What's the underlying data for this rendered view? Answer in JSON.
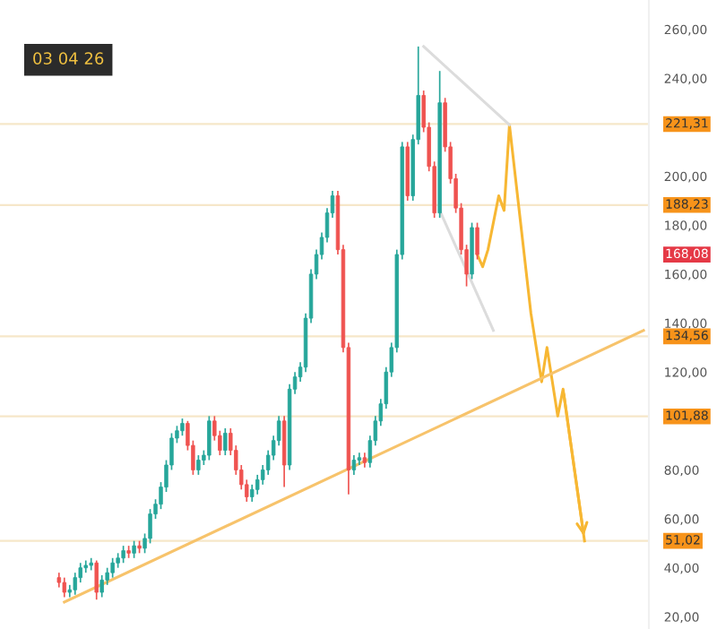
{
  "chart_data": {
    "type": "candlestick",
    "categories": [
      null,
      null,
      null,
      null,
      null,
      null,
      null,
      null,
      null,
      null,
      null,
      null,
      null,
      null,
      null,
      null,
      null,
      null,
      null,
      null,
      null,
      null,
      null,
      null,
      null,
      null,
      null,
      null,
      null,
      null,
      null,
      null,
      null,
      null,
      null,
      null,
      null,
      null,
      null,
      null,
      null,
      null,
      null,
      null,
      null,
      null,
      null,
      null,
      null,
      null,
      null,
      null,
      null,
      null,
      null,
      null,
      null,
      null,
      null,
      null,
      null,
      null,
      null,
      null,
      null,
      null,
      null,
      null,
      null,
      null,
      null,
      null,
      null,
      null,
      null,
      null,
      null,
      null,
      null,
      null,
      null,
      null,
      null,
      null,
      null,
      null,
      null,
      null,
      null,
      null,
      null,
      null,
      null,
      null,
      null,
      null,
      null,
      null,
      null,
      null,
      null,
      null,
      null,
      null,
      null,
      null,
      null,
      null,
      null,
      null
    ],
    "ohlc": [
      [
        36,
        38,
        32,
        34
      ],
      [
        34,
        36,
        28,
        30
      ],
      [
        30,
        33,
        28,
        31
      ],
      [
        31,
        38,
        29,
        36
      ],
      [
        36,
        42,
        34,
        40
      ],
      [
        40,
        43,
        38,
        41
      ],
      [
        41,
        44,
        39,
        42
      ],
      [
        42,
        43,
        27,
        30
      ],
      [
        30,
        37,
        28,
        35
      ],
      [
        35,
        40,
        33,
        38
      ],
      [
        38,
        44,
        36,
        42
      ],
      [
        42,
        46,
        40,
        44
      ],
      [
        44,
        49,
        42,
        47
      ],
      [
        47,
        49,
        44,
        46
      ],
      [
        46,
        51,
        44,
        49
      ],
      [
        49,
        51,
        46,
        48
      ],
      [
        48,
        54,
        46,
        52
      ],
      [
        52,
        64,
        50,
        62
      ],
      [
        62,
        68,
        60,
        66
      ],
      [
        66,
        75,
        64,
        73
      ],
      [
        73,
        84,
        71,
        82
      ],
      [
        82,
        95,
        80,
        93
      ],
      [
        93,
        98,
        91,
        96
      ],
      [
        96,
        101,
        94,
        99
      ],
      [
        99,
        100,
        88,
        90
      ],
      [
        90,
        92,
        78,
        80
      ],
      [
        80,
        86,
        78,
        84
      ],
      [
        84,
        88,
        82,
        86
      ],
      [
        86,
        102,
        84,
        100
      ],
      [
        100,
        102,
        92,
        94
      ],
      [
        94,
        96,
        86,
        88
      ],
      [
        88,
        97,
        86,
        95
      ],
      [
        95,
        97,
        86,
        88
      ],
      [
        88,
        90,
        78,
        80
      ],
      [
        80,
        82,
        72,
        74
      ],
      [
        74,
        76,
        67,
        69
      ],
      [
        69,
        74,
        67,
        72
      ],
      [
        72,
        78,
        70,
        76
      ],
      [
        76,
        82,
        74,
        80
      ],
      [
        80,
        88,
        78,
        86
      ],
      [
        86,
        94,
        84,
        92
      ],
      [
        92,
        102,
        90,
        100
      ],
      [
        100,
        102,
        73,
        82
      ],
      [
        82,
        115,
        80,
        113
      ],
      [
        113,
        120,
        111,
        118
      ],
      [
        118,
        124,
        116,
        122
      ],
      [
        122,
        144,
        120,
        142
      ],
      [
        142,
        162,
        140,
        160
      ],
      [
        160,
        170,
        158,
        168
      ],
      [
        168,
        177,
        166,
        175
      ],
      [
        175,
        187,
        173,
        185
      ],
      [
        185,
        194,
        183,
        192
      ],
      [
        192,
        194,
        168,
        170
      ],
      [
        170,
        172,
        128,
        130
      ],
      [
        130,
        132,
        70,
        80
      ],
      [
        80,
        86,
        78,
        84
      ],
      [
        84,
        87,
        82,
        85
      ],
      [
        85,
        87,
        81,
        83
      ],
      [
        83,
        94,
        81,
        92
      ],
      [
        92,
        102,
        90,
        100
      ],
      [
        100,
        109,
        98,
        107
      ],
      [
        107,
        122,
        105,
        120
      ],
      [
        120,
        132,
        118,
        130
      ],
      [
        130,
        170,
        128,
        168
      ],
      [
        168,
        214,
        166,
        212
      ],
      [
        212,
        214,
        190,
        192
      ],
      [
        192,
        217,
        190,
        215
      ],
      [
        215,
        253,
        213,
        233
      ],
      [
        233,
        235,
        218,
        220
      ],
      [
        220,
        222,
        202,
        204
      ],
      [
        204,
        206,
        183,
        185
      ],
      [
        185,
        243,
        183,
        230
      ],
      [
        230,
        232,
        210,
        212
      ],
      [
        212,
        214,
        197,
        199
      ],
      [
        199,
        201,
        185,
        187
      ],
      [
        187,
        189,
        168,
        170
      ],
      [
        170,
        172,
        155,
        160
      ],
      [
        160,
        181,
        158,
        179
      ],
      [
        179,
        181,
        166,
        168
      ],
      null,
      null,
      null,
      null,
      null,
      null,
      null,
      null,
      null,
      null,
      null,
      null,
      null,
      null,
      null,
      null,
      null,
      null,
      null,
      null,
      null,
      null,
      null,
      null,
      null,
      null,
      null,
      null,
      null,
      null,
      null
    ],
    "series": [
      {
        "type": "line",
        "color": "#f7b733",
        "values": [
          null,
          null,
          null,
          null,
          null,
          null,
          null,
          null,
          null,
          null,
          null,
          null,
          null,
          null,
          null,
          null,
          null,
          null,
          null,
          null,
          null,
          null,
          null,
          null,
          null,
          null,
          null,
          null,
          null,
          null,
          null,
          null,
          null,
          null,
          null,
          null,
          null,
          null,
          null,
          null,
          null,
          null,
          null,
          null,
          null,
          null,
          null,
          null,
          null,
          null,
          null,
          null,
          null,
          null,
          null,
          null,
          null,
          null,
          null,
          null,
          null,
          null,
          null,
          null,
          null,
          null,
          null,
          null,
          null,
          null,
          null,
          null,
          null,
          null,
          null,
          null,
          null,
          null,
          168,
          163,
          170,
          null,
          192,
          186,
          221,
          null,
          null,
          null,
          144,
          null,
          116,
          130,
          null,
          102,
          113,
          null,
          null,
          null,
          51,
          null,
          null,
          null,
          null,
          null,
          null,
          null,
          null,
          null,
          null,
          null
        ]
      },
      {
        "type": "line",
        "color": "#f7c36b",
        "values": [
          null,
          26,
          null,
          null,
          null,
          null,
          null,
          null,
          null,
          null,
          null,
          null,
          null,
          null,
          null,
          null,
          null,
          null,
          null,
          null,
          null,
          null,
          null,
          null,
          null,
          null,
          null,
          null,
          null,
          null,
          null,
          null,
          null,
          null,
          null,
          null,
          null,
          null,
          null,
          null,
          null,
          null,
          null,
          null,
          null,
          null,
          null,
          null,
          null,
          null,
          null,
          null,
          null,
          null,
          null,
          null,
          null,
          null,
          null,
          null,
          null,
          null,
          null,
          null,
          null,
          null,
          null,
          null,
          null,
          null,
          null,
          null,
          null,
          null,
          null,
          null,
          null,
          null,
          null,
          null,
          null,
          null,
          null,
          null,
          null,
          null,
          null,
          null,
          null,
          null,
          null,
          null,
          null,
          null,
          null,
          null,
          null,
          null,
          null,
          null,
          null,
          null,
          null,
          null,
          null,
          null,
          null,
          null,
          null,
          137
        ]
      },
      {
        "type": "line",
        "color": "#dcdcdc",
        "values": [
          null,
          null,
          null,
          null,
          null,
          null,
          null,
          null,
          null,
          null,
          null,
          null,
          null,
          null,
          null,
          null,
          null,
          null,
          null,
          null,
          null,
          null,
          null,
          null,
          null,
          null,
          null,
          null,
          null,
          null,
          null,
          null,
          null,
          null,
          null,
          null,
          null,
          null,
          null,
          null,
          null,
          null,
          null,
          null,
          null,
          null,
          null,
          null,
          null,
          null,
          null,
          null,
          null,
          null,
          null,
          null,
          null,
          null,
          null,
          null,
          null,
          null,
          null,
          null,
          null,
          null,
          null,
          null,
          253,
          null,
          null,
          null,
          null,
          null,
          null,
          null,
          null,
          null,
          null,
          null,
          null,
          null,
          null,
          null,
          221,
          null,
          null,
          null,
          null,
          null,
          null,
          null,
          null,
          null,
          null,
          null,
          null,
          null,
          null,
          null,
          null,
          null,
          null,
          null,
          null,
          null,
          null,
          null,
          null,
          null
        ]
      },
      {
        "type": "line",
        "color": "#dcdcdc",
        "values": [
          null,
          null,
          null,
          null,
          null,
          null,
          null,
          null,
          null,
          null,
          null,
          null,
          null,
          null,
          null,
          null,
          null,
          null,
          null,
          null,
          null,
          null,
          null,
          null,
          null,
          null,
          null,
          null,
          null,
          null,
          null,
          null,
          null,
          null,
          null,
          null,
          null,
          null,
          null,
          null,
          null,
          null,
          null,
          null,
          null,
          null,
          null,
          null,
          null,
          null,
          null,
          null,
          null,
          null,
          null,
          null,
          null,
          null,
          null,
          null,
          null,
          null,
          null,
          null,
          null,
          null,
          null,
          null,
          null,
          null,
          null,
          186,
          null,
          null,
          null,
          null,
          null,
          null,
          null,
          null,
          null,
          137,
          null,
          null,
          null,
          null,
          null,
          null,
          null,
          null,
          null,
          null,
          null,
          null,
          null,
          null,
          null,
          null,
          null,
          null,
          null,
          null,
          null,
          null,
          null,
          null,
          null,
          null,
          null,
          null
        ]
      }
    ],
    "ylim": [
      15,
      272
    ],
    "yticks": [
      {
        "value": 260,
        "label": "260,00"
      },
      {
        "value": 240,
        "label": "240,00"
      },
      {
        "value": 200,
        "label": "200,00"
      },
      {
        "value": 180,
        "label": "180,00"
      },
      {
        "value": 160,
        "label": "160,00"
      },
      {
        "value": 140,
        "label": "140,00"
      },
      {
        "value": 120,
        "label": "120,00"
      },
      {
        "value": 80,
        "label": "80,00"
      },
      {
        "value": 60,
        "label": "60,00"
      },
      {
        "value": 40,
        "label": "40,00"
      },
      {
        "value": 20,
        "label": "20,00"
      }
    ],
    "ref_lines": [
      {
        "axis": "y",
        "value": 221.31,
        "label": "221,31",
        "color": "#f6e7c9"
      },
      {
        "axis": "y",
        "value": 188.23,
        "label": "188,23",
        "color": "#f6e7c9"
      },
      {
        "axis": "y",
        "value": 134.56,
        "label": "134,56",
        "color": "#f6e7c9"
      },
      {
        "axis": "y",
        "value": 101.88,
        "label": "101,88",
        "color": "#f6e7c9"
      },
      {
        "axis": "y",
        "value": 51.02,
        "label": "51,02",
        "color": "#f6e7c9"
      }
    ],
    "annotations": [
      "03 04 26",
      "168,08"
    ],
    "tick_labels": "y",
    "grid": false
  }
}
